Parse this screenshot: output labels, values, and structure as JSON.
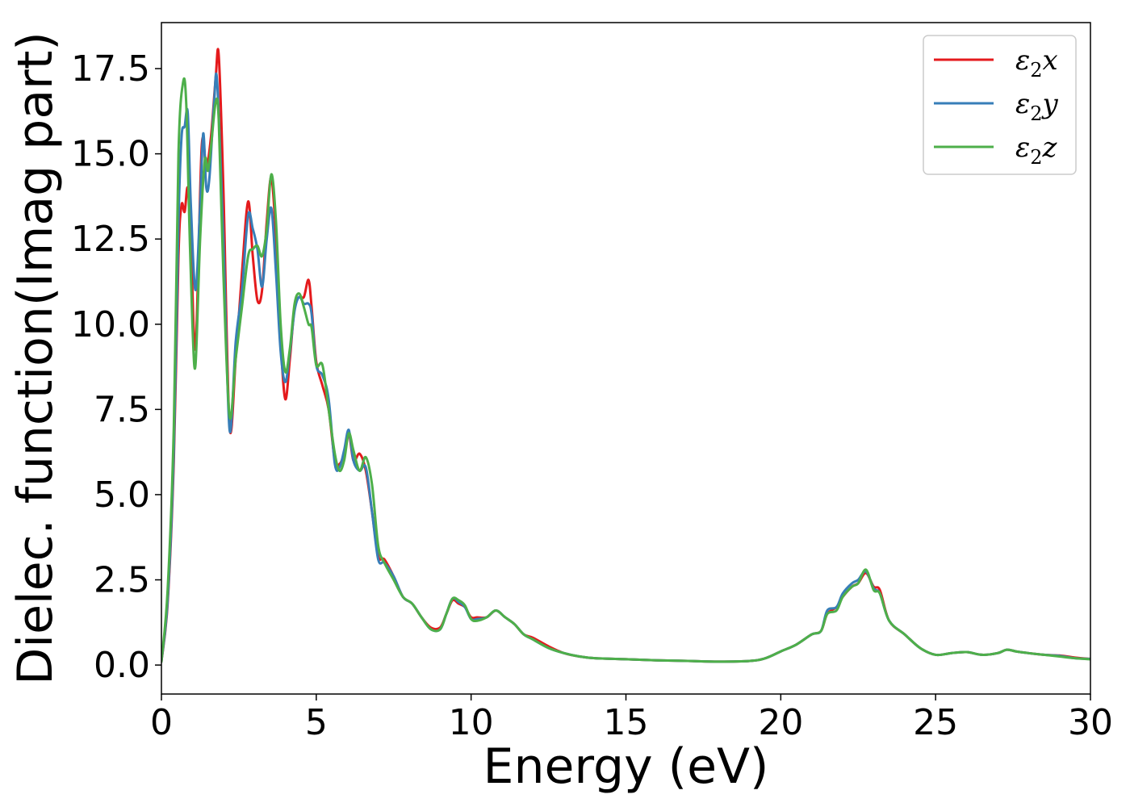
{
  "chart_data": {
    "type": "line",
    "title": "",
    "xlabel": "Energy (eV)",
    "ylabel": "Dielec. function(Imag part)",
    "xlim": [
      0,
      30
    ],
    "ylim": [
      -0.85,
      18.85
    ],
    "xticks": [
      0,
      5,
      10,
      15,
      20,
      25,
      30
    ],
    "xtick_labels": [
      "0",
      "5",
      "10",
      "15",
      "20",
      "25",
      "30"
    ],
    "yticks": [
      0.0,
      2.5,
      5.0,
      7.5,
      10.0,
      12.5,
      15.0,
      17.5
    ],
    "ytick_labels": [
      "0.0",
      "2.5",
      "5.0",
      "7.5",
      "10.0",
      "12.5",
      "15.0",
      "17.5"
    ],
    "grid": false,
    "legend_position": "top-right",
    "series": [
      {
        "name": "ε₂x",
        "legend_base": "ε",
        "legend_sub": "2",
        "legend_var": "x",
        "color": "#e41a1c",
        "x": [
          0,
          0.2,
          0.4,
          0.55,
          0.65,
          0.75,
          0.85,
          0.95,
          1.1,
          1.3,
          1.45,
          1.6,
          1.75,
          1.85,
          2.0,
          2.2,
          2.4,
          2.6,
          2.8,
          2.95,
          3.1,
          3.25,
          3.4,
          3.55,
          3.7,
          3.85,
          4.0,
          4.15,
          4.3,
          4.45,
          4.6,
          4.75,
          4.85,
          5.0,
          5.2,
          5.4,
          5.6,
          5.75,
          5.9,
          6.05,
          6.2,
          6.4,
          6.6,
          6.8,
          7.0,
          7.2,
          7.5,
          7.8,
          8.1,
          8.4,
          8.7,
          9.0,
          9.2,
          9.4,
          9.6,
          9.8,
          10.0,
          10.2,
          10.5,
          10.8,
          11.1,
          11.4,
          11.7,
          12.0,
          12.5,
          13.0,
          13.5,
          14.0,
          15.0,
          16.0,
          17.0,
          18.0,
          19.0,
          19.5,
          20.0,
          20.5,
          21.0,
          21.3,
          21.5,
          21.8,
          22.0,
          22.3,
          22.5,
          22.75,
          23.0,
          23.2,
          23.5,
          24.0,
          24.5,
          25.0,
          25.5,
          26.0,
          26.5,
          27.0,
          27.3,
          27.6,
          28.0,
          28.5,
          29.0,
          29.5,
          30.0
        ],
        "y": [
          0.1,
          1.8,
          6.0,
          12.0,
          13.5,
          13.3,
          14.0,
          12.5,
          9.3,
          15.2,
          14.6,
          15.5,
          17.2,
          17.9,
          14.0,
          7.0,
          9.0,
          11.5,
          13.6,
          12.0,
          10.7,
          11.0,
          13.0,
          14.3,
          12.5,
          9.5,
          7.8,
          9.0,
          10.5,
          10.8,
          10.8,
          11.3,
          10.5,
          8.9,
          8.2,
          7.5,
          6.0,
          5.9,
          6.2,
          6.8,
          6.0,
          6.2,
          5.7,
          4.5,
          3.2,
          3.1,
          2.6,
          2.0,
          1.8,
          1.4,
          1.1,
          1.1,
          1.5,
          1.9,
          1.8,
          1.7,
          1.4,
          1.4,
          1.4,
          1.6,
          1.4,
          1.2,
          0.9,
          0.8,
          0.55,
          0.35,
          0.25,
          0.2,
          0.17,
          0.14,
          0.12,
          0.1,
          0.12,
          0.2,
          0.4,
          0.6,
          0.9,
          1.0,
          1.5,
          1.7,
          2.0,
          2.3,
          2.4,
          2.7,
          2.3,
          2.2,
          1.3,
          0.9,
          0.5,
          0.3,
          0.35,
          0.38,
          0.3,
          0.35,
          0.45,
          0.4,
          0.35,
          0.3,
          0.28,
          0.22,
          0.18
        ]
      },
      {
        "name": "ε₂y",
        "legend_base": "ε",
        "legend_sub": "2",
        "legend_var": "y",
        "color": "#377eb8",
        "x": [
          0,
          0.2,
          0.4,
          0.55,
          0.65,
          0.75,
          0.85,
          0.95,
          1.1,
          1.25,
          1.35,
          1.45,
          1.55,
          1.7,
          1.8,
          2.0,
          2.2,
          2.4,
          2.6,
          2.8,
          2.95,
          3.1,
          3.25,
          3.4,
          3.55,
          3.7,
          3.85,
          4.0,
          4.15,
          4.3,
          4.45,
          4.6,
          4.75,
          4.85,
          5.0,
          5.2,
          5.4,
          5.6,
          5.75,
          5.9,
          6.05,
          6.2,
          6.4,
          6.6,
          6.8,
          7.0,
          7.2,
          7.5,
          7.8,
          8.1,
          8.4,
          8.7,
          9.0,
          9.2,
          9.4,
          9.6,
          9.8,
          10.0,
          10.2,
          10.5,
          10.8,
          11.1,
          11.4,
          11.7,
          12.0,
          12.5,
          13.0,
          13.5,
          14.0,
          15.0,
          16.0,
          17.0,
          18.0,
          19.0,
          19.5,
          20.0,
          20.5,
          21.0,
          21.3,
          21.5,
          21.8,
          22.0,
          22.3,
          22.5,
          22.75,
          23.0,
          23.2,
          23.5,
          24.0,
          24.5,
          25.0,
          25.5,
          26.0,
          26.5,
          27.0,
          27.3,
          27.6,
          28.0,
          28.5,
          29.0,
          29.5,
          30.0
        ],
        "y": [
          0.1,
          1.9,
          6.3,
          13.0,
          15.5,
          15.8,
          16.2,
          13.5,
          11.0,
          13.5,
          15.6,
          14.0,
          14.3,
          16.5,
          17.1,
          12.5,
          6.9,
          9.5,
          11.0,
          13.2,
          12.8,
          12.2,
          11.1,
          12.5,
          13.4,
          11.5,
          9.2,
          8.3,
          9.2,
          10.4,
          10.8,
          10.6,
          10.6,
          10.3,
          8.8,
          8.5,
          7.8,
          5.9,
          5.8,
          6.3,
          6.9,
          6.0,
          5.7,
          5.8,
          4.5,
          3.1,
          3.0,
          2.6,
          2.0,
          1.8,
          1.4,
          1.05,
          1.05,
          1.5,
          1.95,
          1.85,
          1.7,
          1.35,
          1.35,
          1.4,
          1.6,
          1.4,
          1.2,
          0.9,
          0.75,
          0.5,
          0.35,
          0.25,
          0.2,
          0.17,
          0.14,
          0.12,
          0.1,
          0.12,
          0.2,
          0.4,
          0.6,
          0.9,
          1.0,
          1.6,
          1.7,
          2.1,
          2.4,
          2.5,
          2.75,
          2.25,
          2.1,
          1.3,
          0.9,
          0.5,
          0.3,
          0.35,
          0.38,
          0.3,
          0.35,
          0.45,
          0.4,
          0.35,
          0.3,
          0.27,
          0.2,
          0.18
        ]
      },
      {
        "name": "ε₂z",
        "legend_base": "ε",
        "legend_sub": "2",
        "legend_var": "z",
        "color": "#4daf4a",
        "x": [
          0,
          0.2,
          0.4,
          0.55,
          0.7,
          0.8,
          0.9,
          1.0,
          1.1,
          1.25,
          1.4,
          1.5,
          1.6,
          1.75,
          1.85,
          2.0,
          2.2,
          2.4,
          2.6,
          2.8,
          2.95,
          3.1,
          3.25,
          3.4,
          3.55,
          3.7,
          3.85,
          4.0,
          4.15,
          4.3,
          4.45,
          4.6,
          4.75,
          4.85,
          5.0,
          5.2,
          5.4,
          5.6,
          5.75,
          5.9,
          6.05,
          6.2,
          6.4,
          6.6,
          6.8,
          7.0,
          7.2,
          7.5,
          7.8,
          8.1,
          8.4,
          8.7,
          9.0,
          9.2,
          9.4,
          9.6,
          9.8,
          10.0,
          10.2,
          10.5,
          10.8,
          11.1,
          11.4,
          11.7,
          12.0,
          12.5,
          13.0,
          13.5,
          14.0,
          15.0,
          16.0,
          17.0,
          18.0,
          19.0,
          19.5,
          20.0,
          20.5,
          21.0,
          21.3,
          21.5,
          21.8,
          22.0,
          22.3,
          22.5,
          22.75,
          23.0,
          23.2,
          23.5,
          24.0,
          24.5,
          25.0,
          25.5,
          26.0,
          26.5,
          27.0,
          27.3,
          27.6,
          28.0,
          28.5,
          29.0,
          29.5,
          30.0
        ],
        "y": [
          0.1,
          2.2,
          7.0,
          15.0,
          17.1,
          16.5,
          13.0,
          10.0,
          8.8,
          12.5,
          14.8,
          14.5,
          15.2,
          16.5,
          16.0,
          11.5,
          7.3,
          9.0,
          10.5,
          12.0,
          12.2,
          12.3,
          12.0,
          12.8,
          14.4,
          13.0,
          10.0,
          8.6,
          9.3,
          10.6,
          10.9,
          10.5,
          10.0,
          9.9,
          8.8,
          8.8,
          7.5,
          6.2,
          5.7,
          6.0,
          6.8,
          6.3,
          5.7,
          6.1,
          5.3,
          3.5,
          3.0,
          2.5,
          2.0,
          1.8,
          1.4,
          1.05,
          1.05,
          1.5,
          1.95,
          1.9,
          1.75,
          1.35,
          1.3,
          1.4,
          1.6,
          1.4,
          1.2,
          0.9,
          0.75,
          0.5,
          0.35,
          0.25,
          0.2,
          0.17,
          0.14,
          0.12,
          0.1,
          0.12,
          0.2,
          0.4,
          0.6,
          0.9,
          1.0,
          1.5,
          1.6,
          2.0,
          2.3,
          2.4,
          2.8,
          2.2,
          2.1,
          1.3,
          0.9,
          0.5,
          0.3,
          0.35,
          0.38,
          0.3,
          0.35,
          0.45,
          0.4,
          0.35,
          0.3,
          0.25,
          0.2,
          0.17
        ]
      }
    ]
  }
}
